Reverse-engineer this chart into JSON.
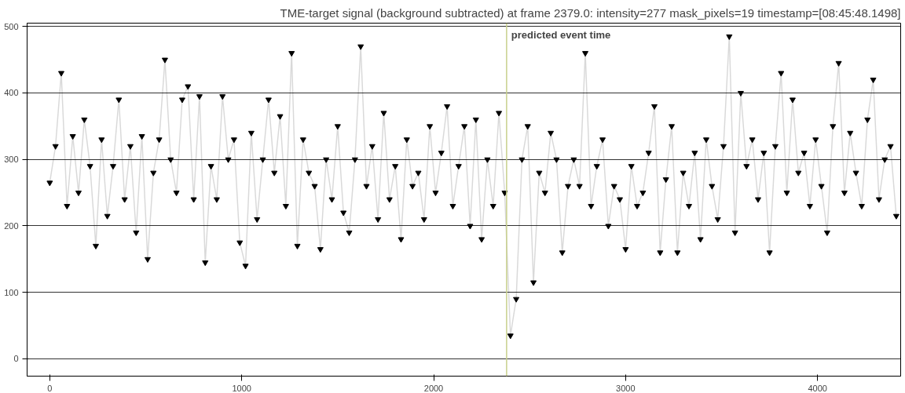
{
  "chart_data": {
    "type": "line",
    "title": "TME-target signal (background subtracted) at frame 2379.0: intensity=277 mask_pixels=19 timestamp=[08:45:48.1498]",
    "x": [
      0,
      30,
      60,
      90,
      120,
      150,
      180,
      210,
      240,
      270,
      300,
      330,
      360,
      390,
      420,
      450,
      480,
      510,
      540,
      570,
      600,
      630,
      660,
      690,
      720,
      750,
      780,
      810,
      840,
      870,
      900,
      930,
      960,
      990,
      1020,
      1050,
      1080,
      1110,
      1140,
      1170,
      1200,
      1230,
      1260,
      1290,
      1320,
      1350,
      1380,
      1410,
      1440,
      1470,
      1500,
      1530,
      1560,
      1590,
      1620,
      1650,
      1680,
      1710,
      1740,
      1770,
      1800,
      1830,
      1860,
      1890,
      1920,
      1950,
      1980,
      2010,
      2040,
      2070,
      2100,
      2130,
      2160,
      2190,
      2220,
      2250,
      2280,
      2310,
      2340,
      2370,
      2400,
      2430,
      2460,
      2490,
      2520,
      2550,
      2580,
      2610,
      2640,
      2670,
      2700,
      2730,
      2760,
      2790,
      2820,
      2850,
      2880,
      2910,
      2940,
      2970,
      3000,
      3030,
      3060,
      3090,
      3120,
      3150,
      3180,
      3210,
      3240,
      3270,
      3300,
      3330,
      3360,
      3390,
      3420,
      3450,
      3480,
      3510,
      3540,
      3570,
      3600,
      3630,
      3660,
      3690,
      3720,
      3750,
      3780,
      3810,
      3840,
      3870,
      3900,
      3930,
      3960,
      3990,
      4020,
      4050,
      4080,
      4110,
      4140,
      4170,
      4200,
      4230,
      4260,
      4290,
      4320,
      4350,
      4380,
      4410
    ],
    "series": [
      {
        "color": "#000000",
        "values": [
          265,
          320,
          430,
          230,
          335,
          250,
          360,
          290,
          170,
          330,
          215,
          290,
          390,
          240,
          320,
          190,
          335,
          150,
          280,
          330,
          450,
          300,
          250,
          390,
          410,
          240,
          395,
          145,
          290,
          240,
          395,
          300,
          330,
          175,
          140,
          340,
          210,
          300,
          390,
          280,
          365,
          230,
          460,
          170,
          330,
          280,
          260,
          165,
          300,
          240,
          350,
          220,
          190,
          300,
          470,
          260,
          320,
          210,
          370,
          240,
          290,
          180,
          330,
          260,
          280,
          210,
          350,
          250,
          310,
          380,
          230,
          290,
          350,
          200,
          360,
          180,
          300,
          230,
          370,
          250,
          35,
          90,
          300,
          350,
          115,
          280,
          250,
          340,
          300,
          160,
          260,
          300,
          260,
          460,
          230,
          290,
          330,
          200,
          260,
          240,
          165,
          290,
          230,
          250,
          310,
          380,
          160,
          270,
          350,
          160,
          280,
          230,
          310,
          180,
          330,
          260,
          210,
          320,
          485,
          190,
          400,
          290,
          330,
          240,
          310,
          160,
          320,
          430,
          250,
          390,
          280,
          310,
          230,
          330,
          260,
          190,
          350,
          445,
          250,
          340,
          280,
          230,
          360,
          420,
          240,
          300,
          320,
          215
        ]
      }
    ],
    "xlim": [
      -118,
      4433
    ],
    "ylim": [
      -26,
      505
    ],
    "xticks": [
      0,
      1000,
      2000,
      3000,
      4000
    ],
    "yticks": [
      0,
      100,
      200,
      300,
      400,
      500
    ],
    "grid": "y",
    "marker": "triangle",
    "line_style": "solid",
    "ref_lines": [
      {
        "axis": "x",
        "value": 2380,
        "label": "predicted event time",
        "color": "#c8d08c"
      }
    ]
  }
}
